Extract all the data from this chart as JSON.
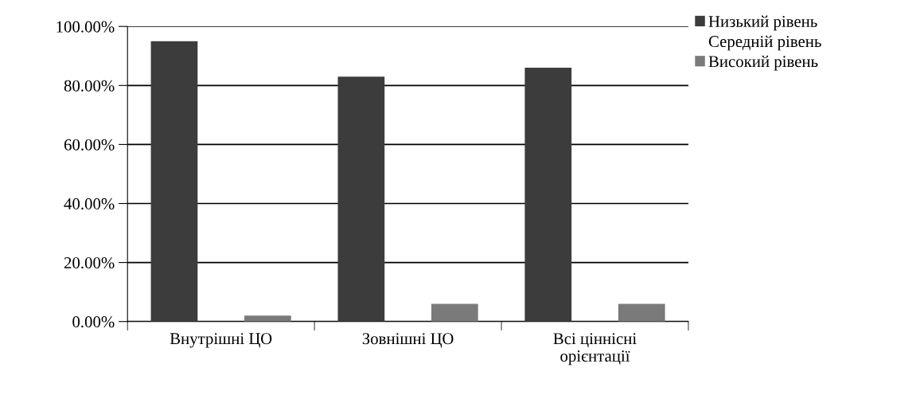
{
  "chart_data": {
    "type": "bar",
    "categories": [
      "Внутрішні ЦО",
      "Зовнішні ЦО",
      "Всі ціннісні\nорієнтації"
    ],
    "series": [
      {
        "name": "Низький рівень",
        "color": "#3c3c3c",
        "values": [
          95,
          83,
          86
        ]
      },
      {
        "name": "Середній рівень",
        "values": [
          null,
          null,
          null
        ]
      },
      {
        "name": "Високий рівень",
        "color": "#7a7a7a",
        "values": [
          2,
          6,
          6
        ]
      }
    ],
    "ylim": [
      0,
      100
    ],
    "yticks": [
      {
        "value": 0,
        "label": "0.00%"
      },
      {
        "value": 20,
        "label": "20.00%"
      },
      {
        "value": 40,
        "label": "40.00%"
      },
      {
        "value": 60,
        "label": "60.00%"
      },
      {
        "value": 80,
        "label": "80.00%"
      },
      {
        "value": 100,
        "label": "100.00%"
      }
    ],
    "grid": "y",
    "legend": "top right"
  }
}
